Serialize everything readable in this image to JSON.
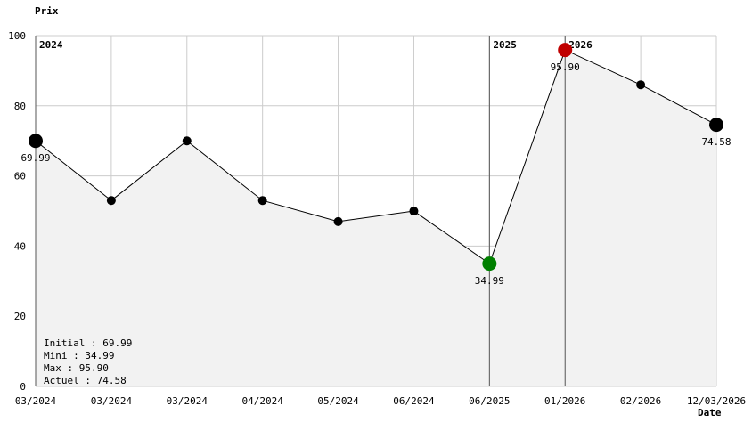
{
  "chart_data": {
    "type": "area",
    "ylabel": "Prix",
    "xlabel": "Date",
    "ylim": [
      0,
      100
    ],
    "y_ticks": [
      0,
      20,
      40,
      60,
      80,
      100
    ],
    "x_tick_labels": [
      "03/2024",
      "03/2024",
      "03/2024",
      "04/2024",
      "05/2024",
      "06/2024",
      "06/2025",
      "01/2026",
      "02/2026",
      "12/03/2026"
    ],
    "year_markers": [
      {
        "label": "2024",
        "index": 0
      },
      {
        "label": "2025",
        "index": 6
      },
      {
        "label": "2026",
        "index": 7
      }
    ],
    "values": [
      69.99,
      52.99,
      69.99,
      52.99,
      46.99,
      49.99,
      34.99,
      95.9,
      85.99,
      74.58
    ],
    "point_labels": [
      {
        "index": 0,
        "text": "69.99",
        "color": "#000000"
      },
      {
        "index": 6,
        "text": "34.99",
        "color": "#008000"
      },
      {
        "index": 7,
        "text": "95.90",
        "color": "#a00000"
      },
      {
        "index": 9,
        "text": "74.58",
        "color": "#000000"
      }
    ],
    "highlight": {
      "first": 0,
      "min": 6,
      "max": 7,
      "last": 9
    },
    "colors": {
      "fill": "#f2f2f2",
      "grid": "#cccccc",
      "line": "#000000",
      "min": "#008000",
      "max": "#c00000"
    },
    "grid": true,
    "legend": [
      {
        "label": "Initial",
        "value": "69.99",
        "color": "#000000"
      },
      {
        "label": "Mini",
        "value": "34.99",
        "color": "#008000"
      },
      {
        "label": "Max",
        "value": "95.90",
        "color": "#a00000"
      },
      {
        "label": "Actuel",
        "value": "74.58",
        "color": "#000000"
      }
    ],
    "legend_position": "bottom-left"
  }
}
